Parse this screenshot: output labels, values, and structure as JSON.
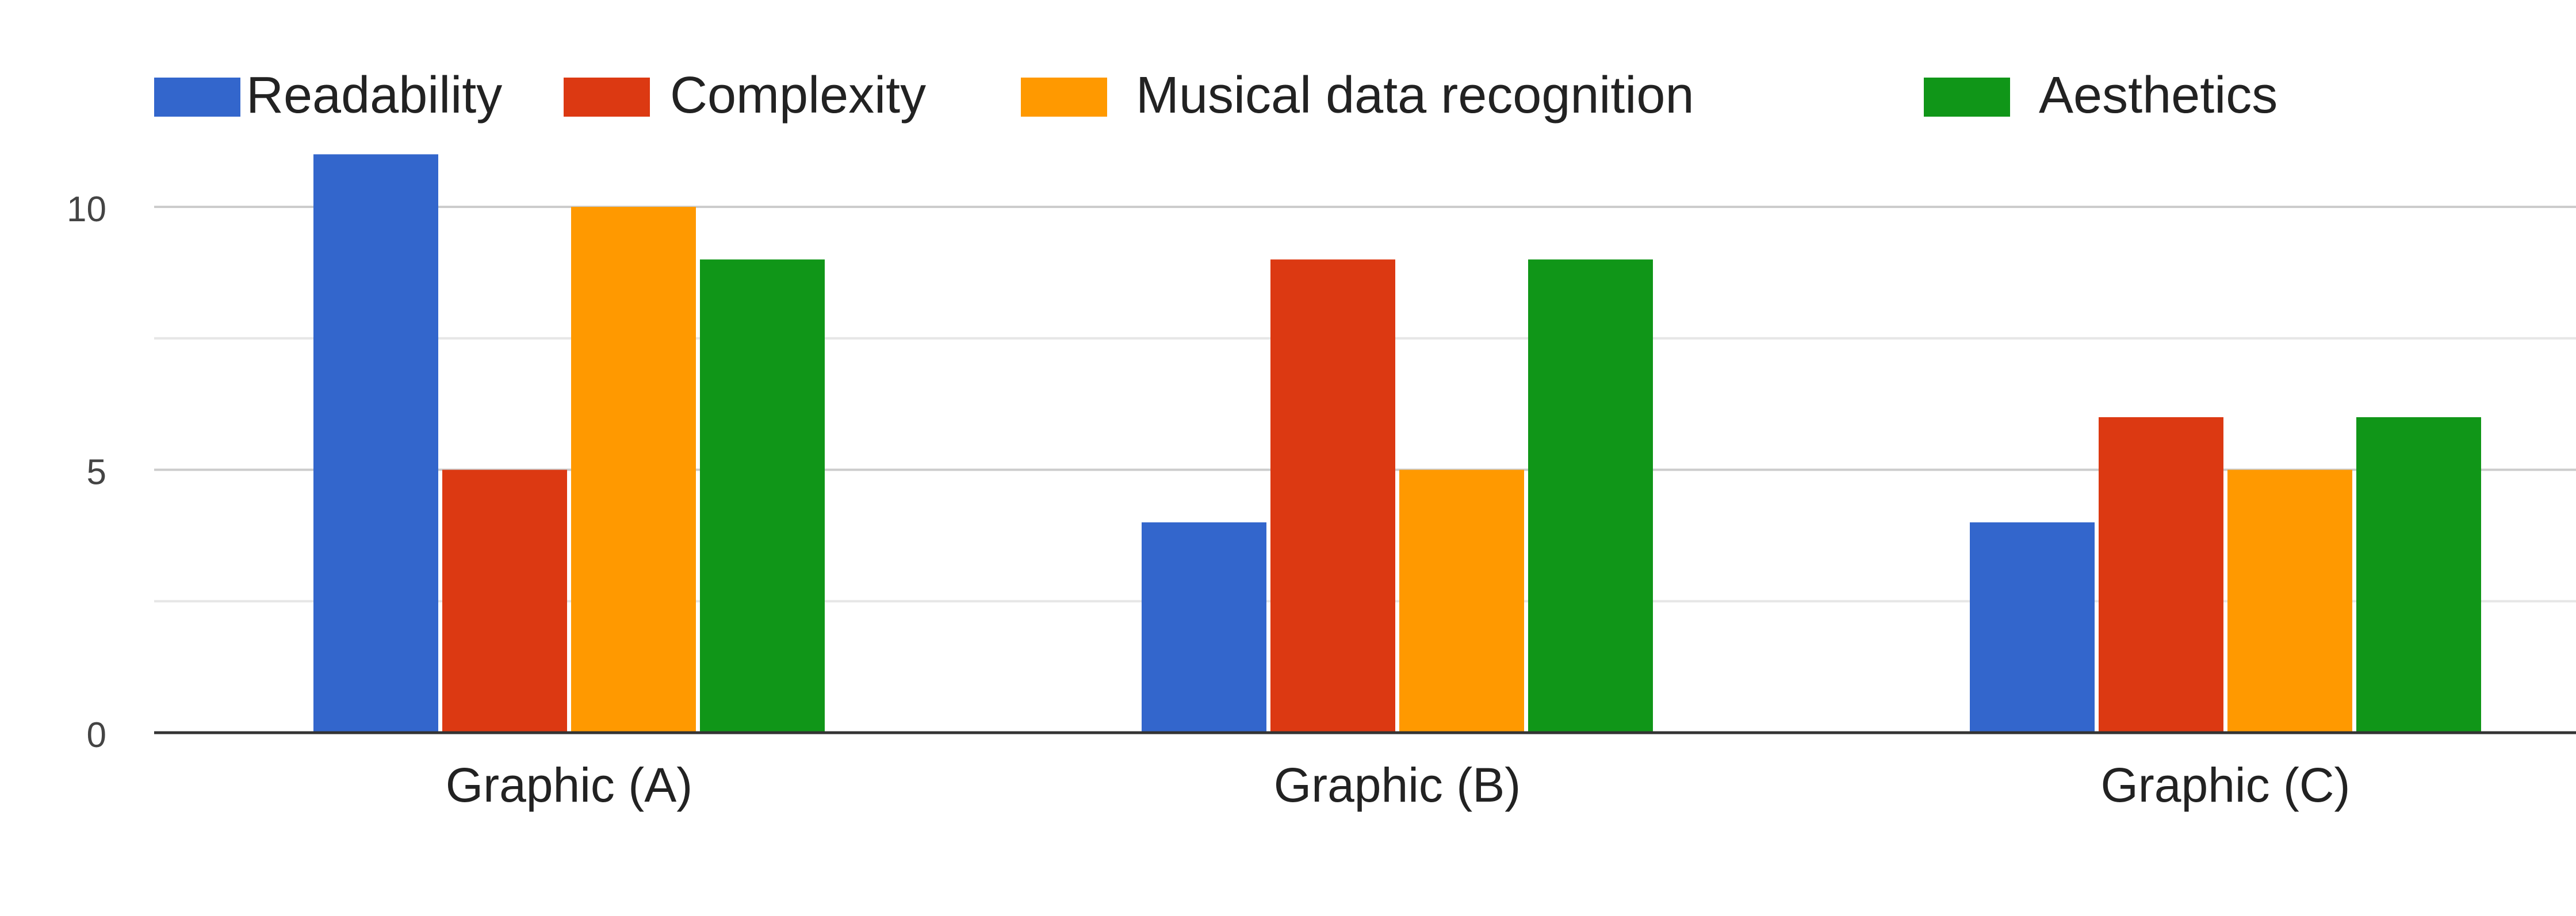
{
  "chart_data": {
    "type": "bar",
    "categories": [
      "Graphic (A)",
      "Graphic (B)",
      "Graphic (C)"
    ],
    "series": [
      {
        "name": "Readability",
        "color": "#3366cc",
        "values": [
          11,
          4,
          4
        ]
      },
      {
        "name": "Complexity",
        "color": "#dc3912",
        "values": [
          5,
          9,
          6
        ]
      },
      {
        "name": "Musical data recognition",
        "color": "#ff9900",
        "values": [
          10,
          5,
          5
        ]
      },
      {
        "name": "Aesthetics",
        "color": "#109618",
        "values": [
          9,
          9,
          6
        ]
      }
    ],
    "y_ticks": [
      "0",
      "5",
      "10"
    ],
    "ylim": [
      0,
      11
    ],
    "grid": true,
    "legend_position": "top"
  }
}
